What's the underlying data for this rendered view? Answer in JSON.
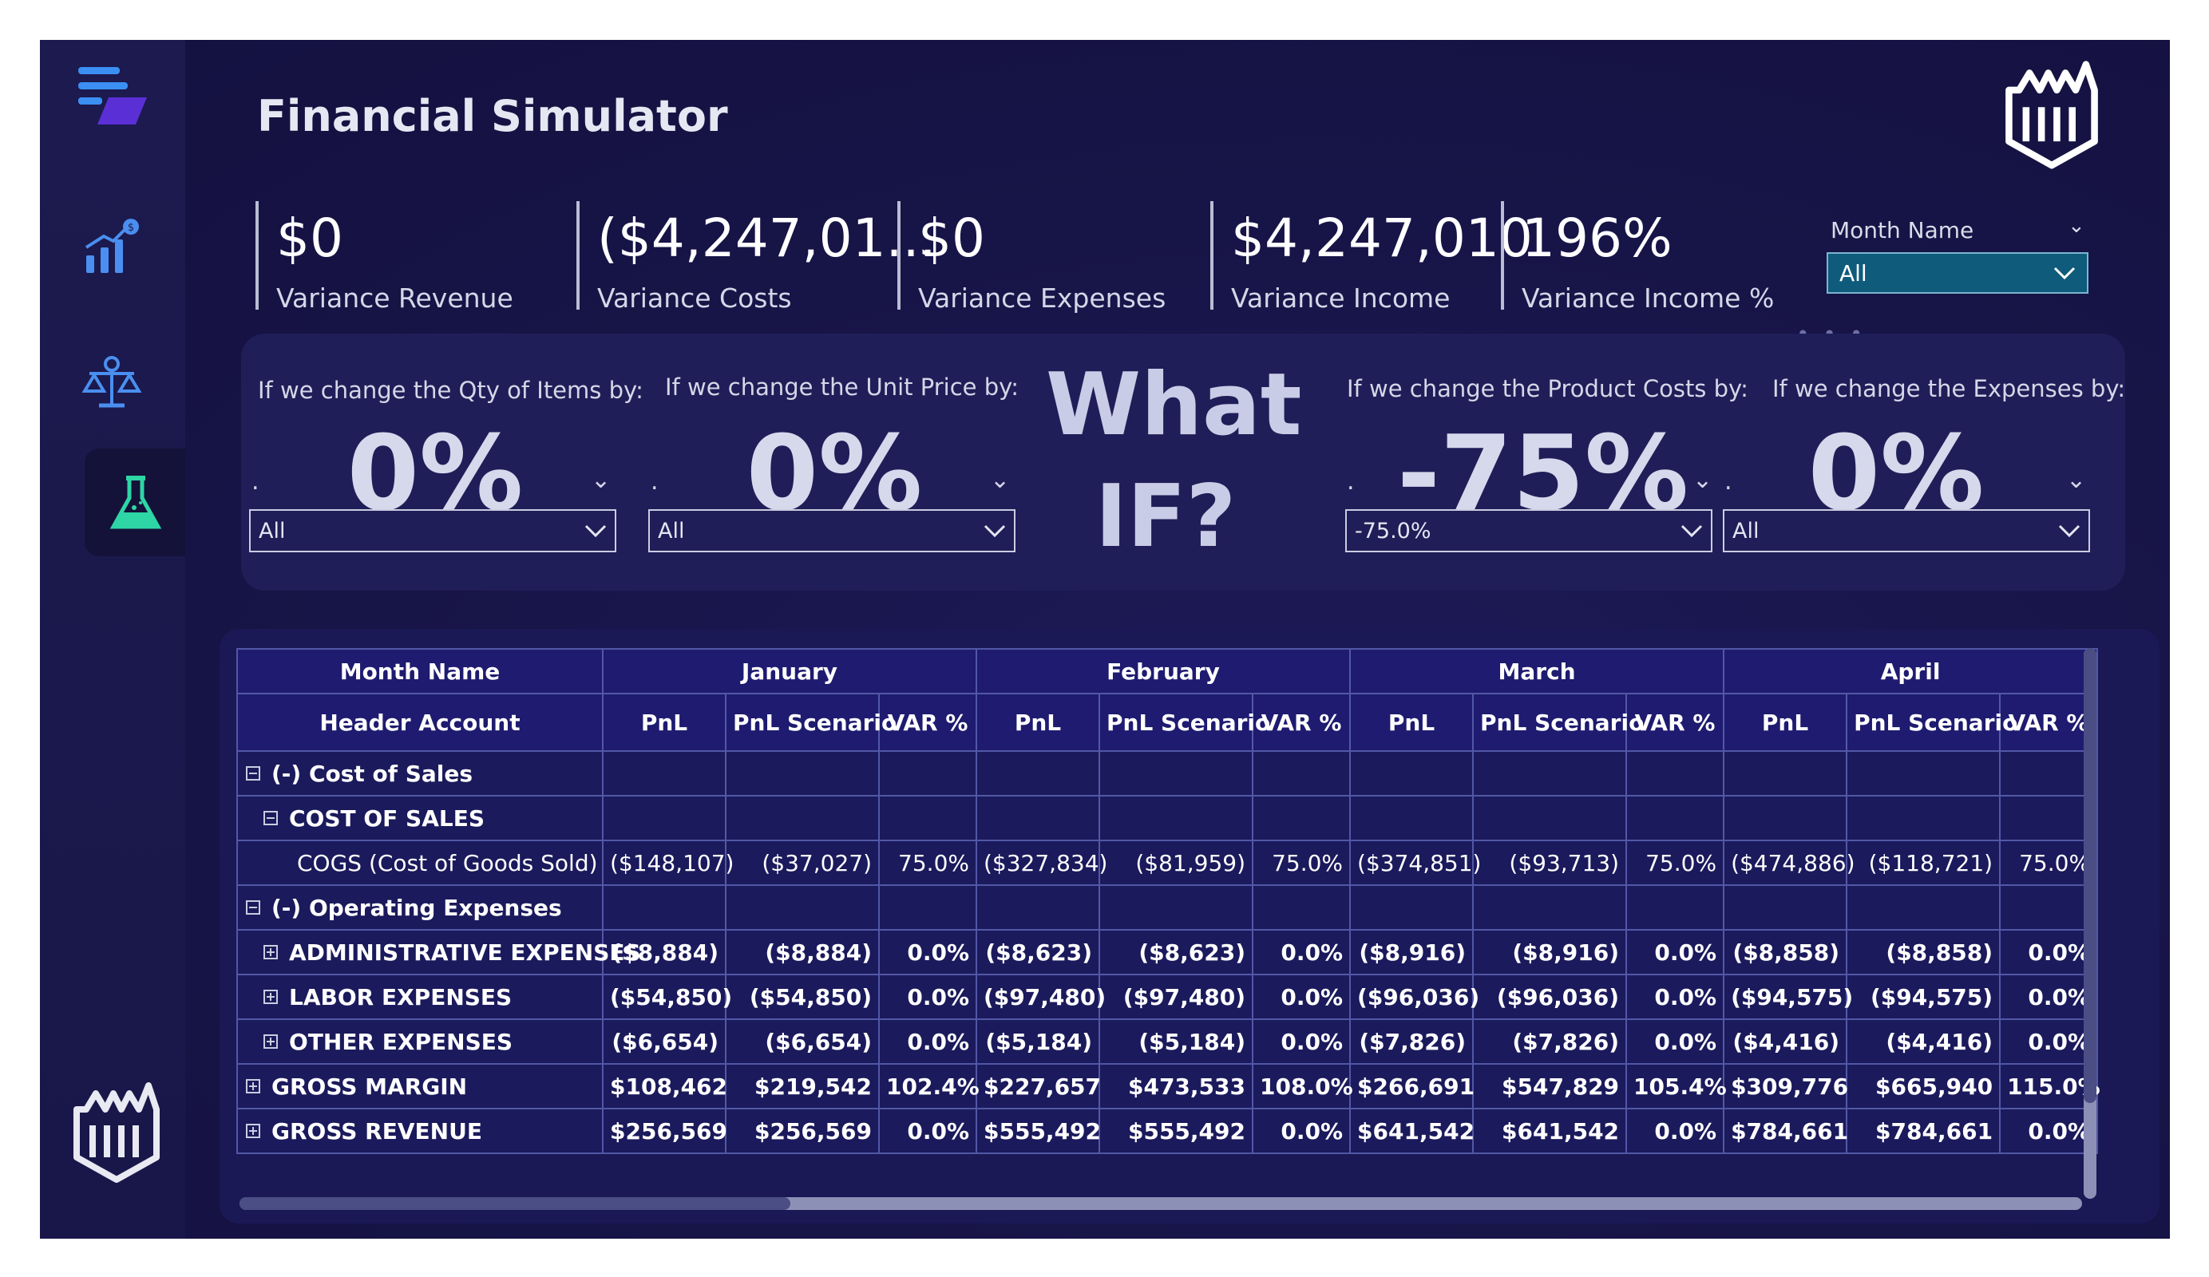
{
  "app": {
    "title": "Financial Simulator"
  },
  "sidebar": {
    "icons": [
      "menu-icon",
      "chart-growth-icon",
      "scales-icon",
      "flask-icon",
      "logo-icon"
    ]
  },
  "kpis": [
    {
      "value": "$0",
      "label": "Variance Revenue"
    },
    {
      "value": "($4,247,01...",
      "label": "Variance Costs"
    },
    {
      "value": "$0",
      "label": "Variance Expenses"
    },
    {
      "value": "$4,247,010",
      "label": "Variance Income"
    },
    {
      "value": "196%",
      "label": "Variance Income %"
    }
  ],
  "month_slicer": {
    "label": "Month Name",
    "selected": "All"
  },
  "whatif": {
    "heading_line1": "What",
    "heading_line2": "IF?",
    "sliders": [
      {
        "label": "If we change the Qty of Items by:",
        "value": "0%",
        "selected": "All"
      },
      {
        "label": "If we change the Unit Price by:",
        "value": "0%",
        "selected": "All"
      },
      {
        "label": "If we change the Product Costs by:",
        "value": "-75%",
        "selected": "-75.0%"
      },
      {
        "label": "If we change the Expenses by:",
        "value": "0%",
        "selected": "All"
      }
    ]
  },
  "table": {
    "row_header_1": "Month Name",
    "row_header_2": "Header Account",
    "months": [
      "January",
      "February",
      "March",
      "April"
    ],
    "subcols": [
      "PnL",
      "PnL Scenario",
      "VAR %"
    ],
    "rows": [
      {
        "account": "(-) Cost of Sales",
        "level": 0,
        "expander": "minus",
        "bold": true,
        "cells": [
          "",
          "",
          "",
          "",
          "",
          "",
          "",
          "",
          "",
          "",
          "",
          ""
        ]
      },
      {
        "account": "COST OF SALES",
        "level": 1,
        "expander": "minus",
        "bold": true,
        "cells": [
          "",
          "",
          "",
          "",
          "",
          "",
          "",
          "",
          "",
          "",
          "",
          ""
        ]
      },
      {
        "account": "COGS (Cost of Goods Sold)",
        "level": 2,
        "expander": "",
        "bold": false,
        "cells": [
          "($148,107)",
          "($37,027)",
          "75.0%",
          "($327,834)",
          "($81,959)",
          "75.0%",
          "($374,851)",
          "($93,713)",
          "75.0%",
          "($474,886)",
          "($118,721)",
          "75.0%"
        ]
      },
      {
        "account": "(-) Operating Expenses",
        "level": 0,
        "expander": "minus",
        "bold": true,
        "cells": [
          "",
          "",
          "",
          "",
          "",
          "",
          "",
          "",
          "",
          "",
          "",
          ""
        ]
      },
      {
        "account": "ADMINISTRATIVE EXPENSES",
        "level": 1,
        "expander": "plus",
        "bold": true,
        "cells": [
          "($8,884)",
          "($8,884)",
          "0.0%",
          "($8,623)",
          "($8,623)",
          "0.0%",
          "($8,916)",
          "($8,916)",
          "0.0%",
          "($8,858)",
          "($8,858)",
          "0.0%"
        ]
      },
      {
        "account": "LABOR EXPENSES",
        "level": 1,
        "expander": "plus",
        "bold": true,
        "cells": [
          "($54,850)",
          "($54,850)",
          "0.0%",
          "($97,480)",
          "($97,480)",
          "0.0%",
          "($96,036)",
          "($96,036)",
          "0.0%",
          "($94,575)",
          "($94,575)",
          "0.0%"
        ]
      },
      {
        "account": "OTHER EXPENSES",
        "level": 1,
        "expander": "plus",
        "bold": true,
        "cells": [
          "($6,654)",
          "($6,654)",
          "0.0%",
          "($5,184)",
          "($5,184)",
          "0.0%",
          "($7,826)",
          "($7,826)",
          "0.0%",
          "($4,416)",
          "($4,416)",
          "0.0%"
        ]
      },
      {
        "account": "GROSS MARGIN",
        "level": 0,
        "expander": "plus",
        "bold": true,
        "cells": [
          "$108,462",
          "$219,542",
          "102.4%",
          "$227,657",
          "$473,533",
          "108.0%",
          "$266,691",
          "$547,829",
          "105.4%",
          "$309,776",
          "$665,940",
          "115.0%"
        ]
      },
      {
        "account": "GROSS REVENUE",
        "level": 0,
        "expander": "plus",
        "bold": true,
        "cells": [
          "$256,569",
          "$256,569",
          "0.0%",
          "$555,492",
          "$555,492",
          "0.0%",
          "$641,542",
          "$641,542",
          "0.0%",
          "$784,661",
          "$784,661",
          "0.0%"
        ]
      }
    ]
  },
  "colors": {
    "background": "#171447",
    "sidebar": "#1c1a4e",
    "table_header": "#1e1b70",
    "accent_teal": "#0f5b7c",
    "flask_green": "#2ed6a6"
  }
}
